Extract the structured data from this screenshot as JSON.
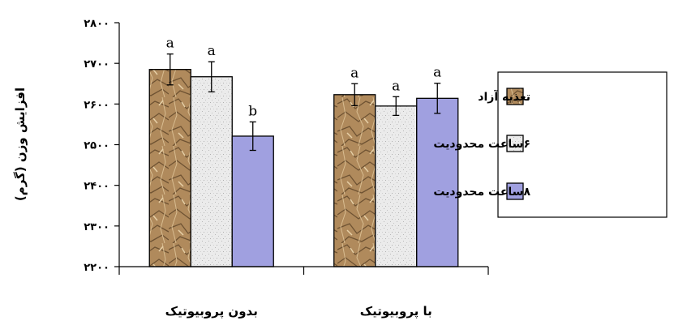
{
  "chart_data": {
    "type": "bar",
    "ylabel": "افزایش وزن (گرم)",
    "ylim": [
      2200,
      2800
    ],
    "yticks": [
      {
        "value": 2200,
        "label": "۲۲۰۰"
      },
      {
        "value": 2300,
        "label": "۲۳۰۰"
      },
      {
        "value": 2400,
        "label": "۲۴۰۰"
      },
      {
        "value": 2500,
        "label": "۲۵۰۰"
      },
      {
        "value": 2600,
        "label": "۲۶۰۰"
      },
      {
        "value": 2700,
        "label": "۲۷۰۰"
      },
      {
        "value": 2800,
        "label": "۲۸۰۰"
      }
    ],
    "grid": false,
    "legend_position": "right",
    "categories": [
      "بدون پروبیوتیک",
      "با پروبیوتیک"
    ],
    "series": [
      {
        "name": "تغذیه آزاد",
        "pattern": "crumpled-paper",
        "color": "#b08a5c",
        "values": [
          2685,
          2623
        ],
        "errors": [
          38,
          27
        ],
        "significance": [
          "a",
          "a"
        ]
      },
      {
        "name": "۶ساعت محدودیت",
        "pattern": "light-stipple",
        "color": "#ebebeb",
        "values": [
          2667,
          2595
        ],
        "errors": [
          37,
          23
        ],
        "significance": [
          "a",
          "a"
        ]
      },
      {
        "name": "۸ساعت محدودیت",
        "pattern": "solid",
        "color": "#a0a0e0",
        "values": [
          2521,
          2614
        ],
        "errors": [
          35,
          37
        ],
        "significance": [
          "b",
          "a"
        ]
      }
    ]
  }
}
